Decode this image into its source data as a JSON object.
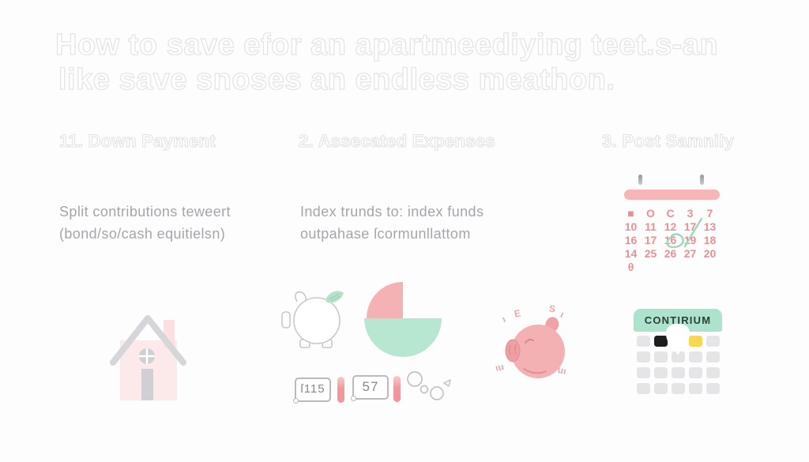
{
  "title": {
    "line1": "How to save efor an apartmeediying teet.s-an",
    "line2": "like save snoses an endless meathon."
  },
  "sections": {
    "down_payment": {
      "header": "11. Down Payment",
      "body_line1": "Split contributions teweert",
      "body_line2": "(bond/so/cash equitielsn)"
    },
    "expenses": {
      "header": "2. Assecated Expenses",
      "body_line1": "Index trunds to: index funds",
      "body_line2": "outpahase ſcormunllattom",
      "badge1": "ſ115",
      "badge2": "57"
    },
    "post": {
      "header": "3. Post Samnily"
    }
  },
  "mini_calendar": {
    "rows": [
      [
        "■",
        "O",
        "C",
        "3",
        "7"
      ],
      [
        "10",
        "11",
        "12",
        "17",
        "13"
      ],
      [
        "16",
        "17",
        "16",
        "19",
        "18"
      ],
      [
        "14",
        "25",
        "26",
        "27",
        "20"
      ],
      [
        "θ",
        "",
        "",
        "",
        ""
      ]
    ]
  },
  "savings_card": {
    "button_label": "CONTIRIUM",
    "grid_rows": [
      [
        "gray",
        "black",
        "gray",
        "yellow",
        "gray"
      ],
      [
        "gray",
        "gray",
        "gray",
        "gray",
        "gray"
      ],
      [
        "gray",
        "gray",
        "gray",
        "gray",
        "gray"
      ],
      [
        "gray",
        "gray",
        "gray",
        "gray",
        "gray"
      ]
    ]
  },
  "pig_doodles": [
    "ı",
    "E",
    "S",
    "ı",
    "ıu",
    "uı"
  ],
  "colors": {
    "pink_soft": "#f6b5b7",
    "pie_pink": "#f5b2b5",
    "mint": "#b7e7d0",
    "calendar_number": "#eb9092",
    "cell_black": "#1e1e20",
    "cell_yellow": "#f6d74d",
    "button_mint": "#ade3cc"
  }
}
